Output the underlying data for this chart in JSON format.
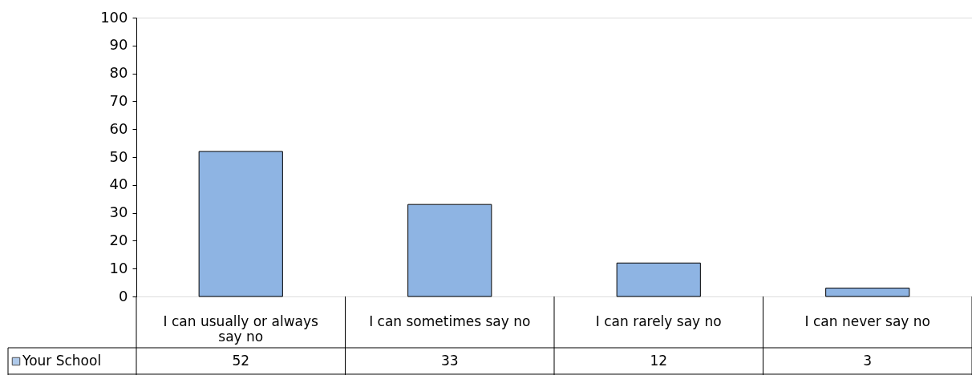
{
  "chart_data": {
    "type": "bar",
    "categories": [
      "I can usually or always say no",
      "I can sometimes say no",
      "I can rarely say no",
      "I can never say no"
    ],
    "series": [
      {
        "name": "Your School",
        "color": "#8eb4e3",
        "values": [
          52,
          33,
          12,
          3
        ]
      }
    ],
    "ylim": [
      0,
      100
    ],
    "yticks": [
      0,
      10,
      20,
      30,
      40,
      50,
      60,
      70,
      80,
      90,
      100
    ],
    "grid": false,
    "legend": "bottom",
    "data_labels": true
  }
}
